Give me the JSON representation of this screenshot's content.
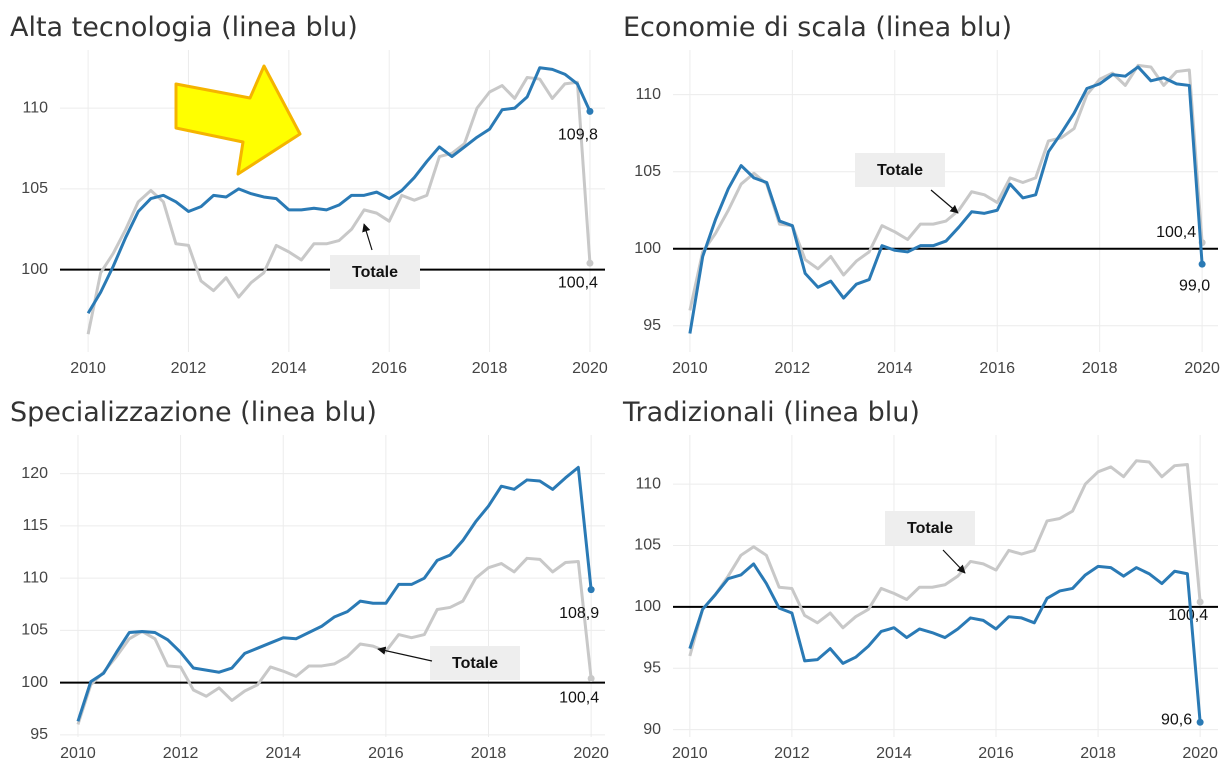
{
  "chart_data": [
    {
      "type": "line",
      "title": "Alta tecnologia (linea blu)",
      "x": [
        2010,
        2010.25,
        2010.5,
        2010.75,
        2011,
        2011.25,
        2011.5,
        2011.75,
        2012,
        2012.25,
        2012.5,
        2012.75,
        2013,
        2013.25,
        2013.5,
        2013.75,
        2014,
        2014.25,
        2014.5,
        2014.75,
        2015,
        2015.25,
        2015.5,
        2015.75,
        2016,
        2016.25,
        2016.5,
        2016.75,
        2017,
        2017.25,
        2017.5,
        2017.75,
        2018,
        2018.25,
        2018.5,
        2018.75,
        2019,
        2019.25,
        2019.5,
        2019.75,
        2020
      ],
      "series": [
        {
          "name": "Totale",
          "color": "#c8c8c8",
          "values": [
            96.0,
            99.8,
            101.0,
            102.5,
            104.2,
            104.9,
            104.2,
            101.6,
            101.5,
            99.3,
            98.7,
            99.5,
            98.3,
            99.2,
            99.8,
            101.5,
            101.1,
            100.6,
            101.6,
            101.6,
            101.8,
            102.5,
            103.7,
            103.5,
            103.0,
            104.6,
            104.3,
            104.6,
            107.0,
            107.2,
            107.8,
            110.0,
            111.0,
            111.4,
            110.6,
            111.9,
            111.8,
            110.6,
            111.5,
            111.6,
            100.4
          ],
          "value_labels": [
            null,
            null,
            null,
            null,
            null,
            null,
            null,
            null,
            null,
            null,
            null,
            null,
            null,
            null,
            null,
            null,
            null,
            null,
            null,
            null,
            null,
            null,
            null,
            null,
            null,
            null,
            null,
            null,
            null,
            null,
            null,
            null,
            null,
            null,
            null,
            null,
            null,
            null,
            null,
            null,
            "100,4"
          ]
        },
        {
          "color": "#2a7ab5",
          "values": [
            97.3,
            98.6,
            100.2,
            102.0,
            103.6,
            104.4,
            104.6,
            104.2,
            103.6,
            103.9,
            104.6,
            104.5,
            105.0,
            104.7,
            104.5,
            104.4,
            103.7,
            103.7,
            103.8,
            103.7,
            104.0,
            104.6,
            104.6,
            104.8,
            104.4,
            104.9,
            105.7,
            106.7,
            107.6,
            107.0,
            107.6,
            108.2,
            108.7,
            109.9,
            110.0,
            110.7,
            112.5,
            112.4,
            112.1,
            111.5,
            109.8
          ],
          "value_labels": [
            null,
            null,
            null,
            null,
            null,
            null,
            null,
            null,
            null,
            null,
            null,
            null,
            null,
            null,
            null,
            null,
            null,
            null,
            null,
            null,
            null,
            null,
            null,
            null,
            null,
            null,
            null,
            null,
            null,
            null,
            null,
            null,
            null,
            null,
            null,
            null,
            null,
            null,
            null,
            null,
            "109,8"
          ]
        }
      ],
      "hline": 100,
      "xlim": [
        2009.44,
        2020.3
      ],
      "xticks": [
        2010,
        2012,
        2014,
        2016,
        2018,
        2020
      ],
      "ylim": [
        94.9,
        113.6
      ],
      "yticks": [
        100,
        105,
        110
      ],
      "grid": true
    },
    {
      "type": "line",
      "title": "Economie di scala (linea blu)",
      "x": [
        2010,
        2010.25,
        2010.5,
        2010.75,
        2011,
        2011.25,
        2011.5,
        2011.75,
        2012,
        2012.25,
        2012.5,
        2012.75,
        2013,
        2013.25,
        2013.5,
        2013.75,
        2014,
        2014.25,
        2014.5,
        2014.75,
        2015,
        2015.25,
        2015.5,
        2015.75,
        2016,
        2016.25,
        2016.5,
        2016.75,
        2017,
        2017.25,
        2017.5,
        2017.75,
        2018,
        2018.25,
        2018.5,
        2018.75,
        2019,
        2019.25,
        2019.5,
        2019.75,
        2020
      ],
      "series": [
        {
          "name": "Totale",
          "color": "#c8c8c8",
          "values": [
            96.0,
            99.8,
            101.0,
            102.5,
            104.2,
            104.9,
            104.2,
            101.6,
            101.5,
            99.3,
            98.7,
            99.5,
            98.3,
            99.2,
            99.8,
            101.5,
            101.1,
            100.6,
            101.6,
            101.6,
            101.8,
            102.5,
            103.7,
            103.5,
            103.0,
            104.6,
            104.3,
            104.6,
            107.0,
            107.2,
            107.8,
            110.0,
            111.0,
            111.4,
            110.6,
            111.9,
            111.8,
            110.6,
            111.5,
            111.6,
            100.4
          ],
          "value_labels": [
            null,
            null,
            null,
            null,
            null,
            null,
            null,
            null,
            null,
            null,
            null,
            null,
            null,
            null,
            null,
            null,
            null,
            null,
            null,
            null,
            null,
            null,
            null,
            null,
            null,
            null,
            null,
            null,
            null,
            null,
            null,
            null,
            null,
            null,
            null,
            null,
            null,
            null,
            null,
            null,
            "100,4"
          ]
        },
        {
          "color": "#2a7ab5",
          "values": [
            94.5,
            99.5,
            101.9,
            103.9,
            105.4,
            104.6,
            104.3,
            101.8,
            101.5,
            98.4,
            97.5,
            97.9,
            96.8,
            97.7,
            98.0,
            100.2,
            99.9,
            99.8,
            100.2,
            100.2,
            100.5,
            101.4,
            102.4,
            102.3,
            102.5,
            104.2,
            103.3,
            103.5,
            106.3,
            107.5,
            108.8,
            110.4,
            110.7,
            111.3,
            111.2,
            111.8,
            110.9,
            111.1,
            110.7,
            110.6,
            99.0
          ],
          "value_labels": [
            null,
            null,
            null,
            null,
            null,
            null,
            null,
            null,
            null,
            null,
            null,
            null,
            null,
            null,
            null,
            null,
            null,
            null,
            null,
            null,
            null,
            null,
            null,
            null,
            null,
            null,
            null,
            null,
            null,
            null,
            null,
            null,
            null,
            null,
            null,
            null,
            null,
            null,
            null,
            null,
            "99,0"
          ]
        }
      ],
      "hline": 100,
      "xlim": [
        2009.67,
        2020.31
      ],
      "xticks": [
        2010,
        2012,
        2014,
        2016,
        2018,
        2020
      ],
      "ylim": [
        93.3,
        112.9
      ],
      "yticks": [
        95,
        100,
        105,
        110
      ],
      "grid": true
    },
    {
      "type": "line",
      "title": "Specializzazione (linea blu)",
      "x": [
        2010,
        2010.25,
        2010.5,
        2010.75,
        2011,
        2011.25,
        2011.5,
        2011.75,
        2012,
        2012.25,
        2012.5,
        2012.75,
        2013,
        2013.25,
        2013.5,
        2013.75,
        2014,
        2014.25,
        2014.5,
        2014.75,
        2015,
        2015.25,
        2015.5,
        2015.75,
        2016,
        2016.25,
        2016.5,
        2016.75,
        2017,
        2017.25,
        2017.5,
        2017.75,
        2018,
        2018.25,
        2018.5,
        2018.75,
        2019,
        2019.25,
        2019.5,
        2019.75,
        2020
      ],
      "series": [
        {
          "name": "Totale",
          "color": "#c8c8c8",
          "values": [
            96.0,
            99.8,
            101.0,
            102.5,
            104.2,
            104.9,
            104.2,
            101.6,
            101.5,
            99.3,
            98.7,
            99.5,
            98.3,
            99.2,
            99.8,
            101.5,
            101.1,
            100.6,
            101.6,
            101.6,
            101.8,
            102.5,
            103.7,
            103.5,
            103.0,
            104.6,
            104.3,
            104.6,
            107.0,
            107.2,
            107.8,
            110.0,
            111.0,
            111.4,
            110.6,
            111.9,
            111.8,
            110.6,
            111.5,
            111.6,
            100.4
          ],
          "value_labels": [
            null,
            null,
            null,
            null,
            null,
            null,
            null,
            null,
            null,
            null,
            null,
            null,
            null,
            null,
            null,
            null,
            null,
            null,
            null,
            null,
            null,
            null,
            null,
            null,
            null,
            null,
            null,
            null,
            null,
            null,
            null,
            null,
            null,
            null,
            null,
            null,
            null,
            null,
            null,
            null,
            "100,4"
          ]
        },
        {
          "color": "#2a7ab5",
          "values": [
            96.3,
            100.1,
            100.9,
            102.9,
            104.8,
            104.9,
            104.8,
            104.1,
            102.9,
            101.4,
            101.2,
            101.0,
            101.4,
            102.8,
            103.3,
            103.8,
            104.3,
            104.2,
            104.8,
            105.4,
            106.3,
            106.8,
            107.8,
            107.6,
            107.6,
            109.4,
            109.4,
            110.0,
            111.7,
            112.2,
            113.6,
            115.4,
            116.9,
            118.8,
            118.5,
            119.4,
            119.3,
            118.5,
            119.6,
            120.6,
            108.9
          ],
          "value_labels": [
            null,
            null,
            null,
            null,
            null,
            null,
            null,
            null,
            null,
            null,
            null,
            null,
            null,
            null,
            null,
            null,
            null,
            null,
            null,
            null,
            null,
            null,
            null,
            null,
            null,
            null,
            null,
            null,
            null,
            null,
            null,
            null,
            null,
            null,
            null,
            null,
            null,
            null,
            null,
            null,
            "108,9"
          ]
        }
      ],
      "hline": 100,
      "xlim": [
        2009.65,
        2020.27
      ],
      "xticks": [
        2010,
        2012,
        2014,
        2016,
        2018,
        2020
      ],
      "ylim": [
        94.8,
        123.7
      ],
      "yticks": [
        95,
        100,
        105,
        110,
        115,
        120
      ],
      "grid": true
    },
    {
      "type": "line",
      "title": "Tradizionali (linea blu)",
      "x": [
        2010,
        2010.25,
        2010.5,
        2010.75,
        2011,
        2011.25,
        2011.5,
        2011.75,
        2012,
        2012.25,
        2012.5,
        2012.75,
        2013,
        2013.25,
        2013.5,
        2013.75,
        2014,
        2014.25,
        2014.5,
        2014.75,
        2015,
        2015.25,
        2015.5,
        2015.75,
        2016,
        2016.25,
        2016.5,
        2016.75,
        2017,
        2017.25,
        2017.5,
        2017.75,
        2018,
        2018.25,
        2018.5,
        2018.75,
        2019,
        2019.25,
        2019.5,
        2019.75,
        2020
      ],
      "series": [
        {
          "name": "Totale",
          "color": "#c8c8c8",
          "values": [
            96.0,
            99.8,
            101.0,
            102.5,
            104.2,
            104.9,
            104.2,
            101.6,
            101.5,
            99.3,
            98.7,
            99.5,
            98.3,
            99.2,
            99.8,
            101.5,
            101.1,
            100.6,
            101.6,
            101.6,
            101.8,
            102.5,
            103.7,
            103.5,
            103.0,
            104.6,
            104.3,
            104.6,
            107.0,
            107.2,
            107.8,
            110.0,
            111.0,
            111.4,
            110.6,
            111.9,
            111.8,
            110.6,
            111.5,
            111.6,
            100.4
          ],
          "value_labels": [
            null,
            null,
            null,
            null,
            null,
            null,
            null,
            null,
            null,
            null,
            null,
            null,
            null,
            null,
            null,
            null,
            null,
            null,
            null,
            null,
            null,
            null,
            null,
            null,
            null,
            null,
            null,
            null,
            null,
            null,
            null,
            null,
            null,
            null,
            null,
            null,
            null,
            null,
            null,
            null,
            "100,4"
          ]
        },
        {
          "color": "#2a7ab5",
          "values": [
            96.6,
            99.8,
            101.0,
            102.3,
            102.6,
            103.5,
            101.9,
            99.9,
            99.5,
            95.6,
            95.7,
            96.6,
            95.4,
            95.9,
            96.8,
            98.0,
            98.3,
            97.5,
            98.2,
            97.9,
            97.5,
            98.2,
            99.1,
            98.9,
            98.2,
            99.2,
            99.1,
            98.7,
            100.7,
            101.3,
            101.5,
            102.6,
            103.3,
            103.2,
            102.5,
            103.2,
            102.7,
            101.9,
            102.9,
            102.7,
            90.6
          ],
          "value_labels": [
            null,
            null,
            null,
            null,
            null,
            null,
            null,
            null,
            null,
            null,
            null,
            null,
            null,
            null,
            null,
            null,
            null,
            null,
            null,
            null,
            null,
            null,
            null,
            null,
            null,
            null,
            null,
            null,
            null,
            null,
            null,
            null,
            null,
            null,
            null,
            null,
            null,
            null,
            null,
            null,
            "90,6"
          ]
        }
      ],
      "hline": 100,
      "xlim": [
        2009.67,
        2020.35
      ],
      "xticks": [
        2010,
        2012,
        2014,
        2016,
        2018,
        2020
      ],
      "ylim": [
        89.4,
        114.0
      ],
      "yticks": [
        90,
        95,
        100,
        105,
        110
      ],
      "grid": true
    }
  ]
}
